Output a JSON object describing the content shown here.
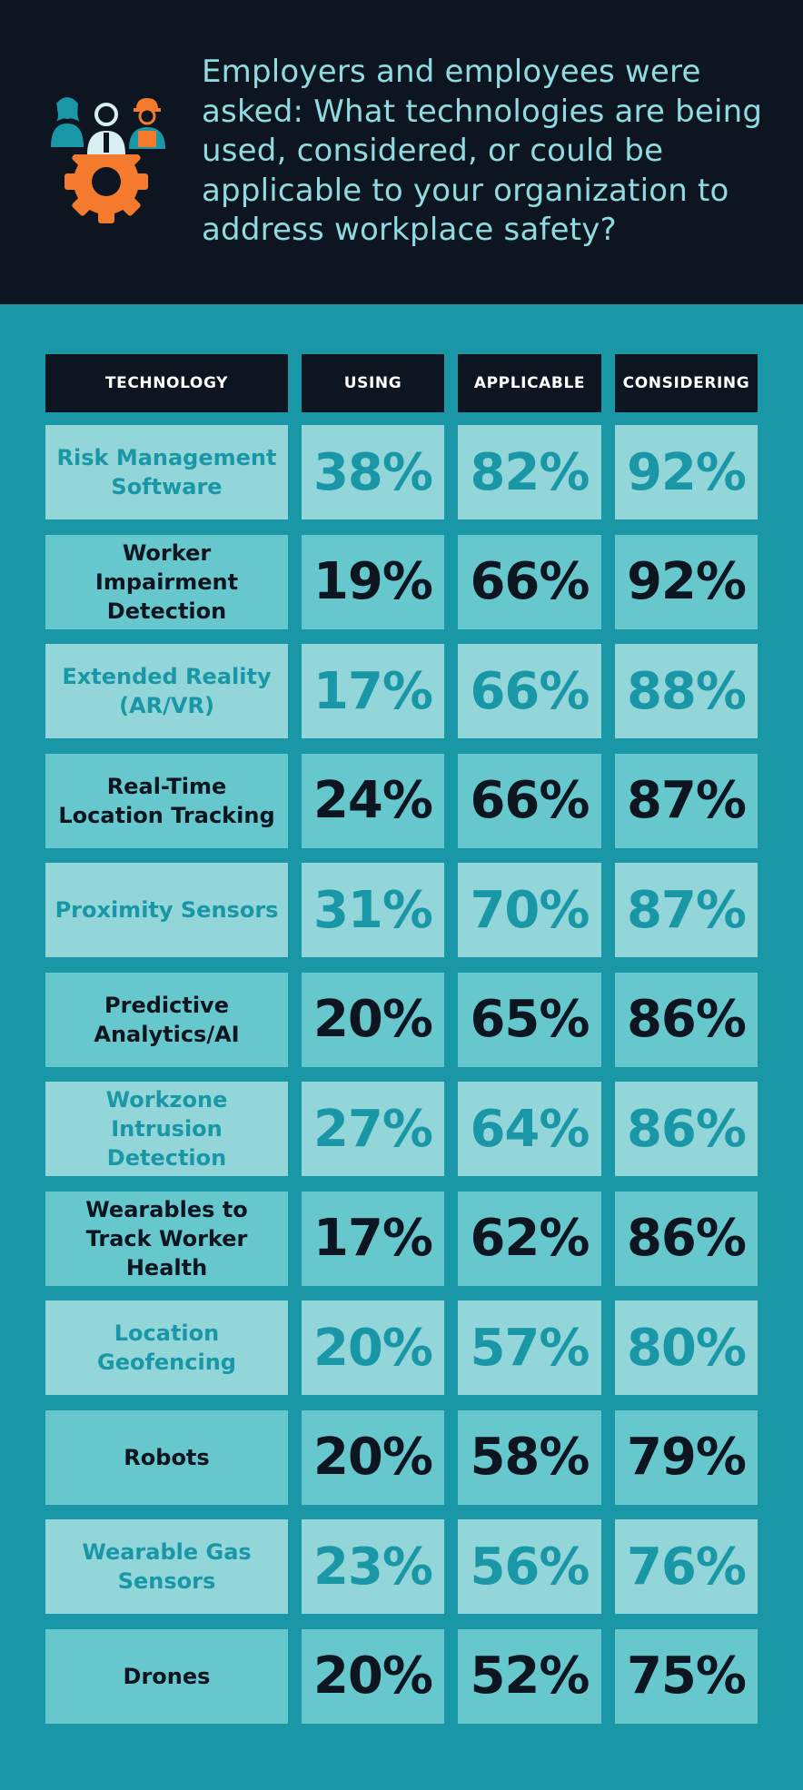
{
  "header": {
    "question": "Employers and employees were asked: What technologies are being used, considered, or could be applicable to your organization to address workplace safety?",
    "icon": "workers-gear-icon"
  },
  "colors": {
    "header_bg": "#0d1520",
    "page_bg": "#1a97a7",
    "light_row": "#93d6da",
    "dark_row": "#66c8cc",
    "accent_orange": "#f47a2e"
  },
  "chart_data": {
    "type": "table",
    "columns": [
      "TECHNOLOGY",
      "USING",
      "APPLICABLE",
      "CONSIDERING"
    ],
    "rows": [
      {
        "name": "Risk Management Software",
        "using": "38%",
        "applicable": "82%",
        "considering": "92%"
      },
      {
        "name": "Worker Impairment Detection",
        "using": "19%",
        "applicable": "66%",
        "considering": "92%"
      },
      {
        "name": "Extended Reality (AR/VR)",
        "using": "17%",
        "applicable": "66%",
        "considering": "88%"
      },
      {
        "name": "Real-Time Location Tracking",
        "using": "24%",
        "applicable": "66%",
        "considering": "87%"
      },
      {
        "name": "Proximity Sensors",
        "using": "31%",
        "applicable": "70%",
        "considering": "87%"
      },
      {
        "name": "Predictive Analytics/AI",
        "using": "20%",
        "applicable": "65%",
        "considering": "86%"
      },
      {
        "name": "Workzone Intrusion Detection",
        "using": "27%",
        "applicable": "64%",
        "considering": "86%"
      },
      {
        "name": "Wearables to Track Worker Health",
        "using": "17%",
        "applicable": "62%",
        "considering": "86%"
      },
      {
        "name": "Location Geofencing",
        "using": "20%",
        "applicable": "57%",
        "considering": "80%"
      },
      {
        "name": "Robots",
        "using": "20%",
        "applicable": "58%",
        "considering": "79%"
      },
      {
        "name": "Wearable Gas Sensors",
        "using": "23%",
        "applicable": "56%",
        "considering": "76%"
      },
      {
        "name": "Drones",
        "using": "20%",
        "applicable": "52%",
        "considering": "75%"
      }
    ]
  }
}
